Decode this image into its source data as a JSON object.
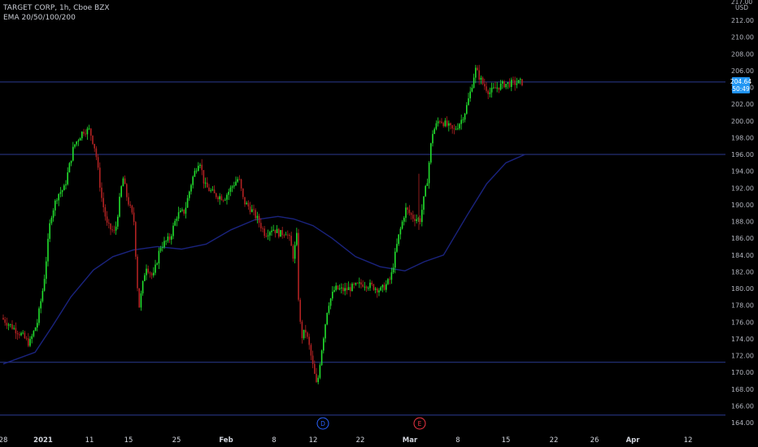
{
  "header": {
    "title": "TARGET CORP, 1h, Cboe BZX",
    "indicator": "EMA 20/50/100/200"
  },
  "axis": {
    "currency": "USD",
    "price_tag": "204.64",
    "countdown_tag": "50:49",
    "event_markers": [
      {
        "label": "D",
        "date_index": 5.05,
        "color": "#2962ff"
      },
      {
        "label": "E",
        "date_index": 10.65,
        "color": "#f23645"
      }
    ]
  },
  "colors": {
    "up": "#22e02e",
    "down": "#b22222",
    "ema": "#1a237e",
    "hline": "#2b3a8f",
    "price_tag_bg": "#2196f3",
    "background": "#000000"
  },
  "chart_data": {
    "type": "candlestick",
    "title": "TARGET CORP, 1h, Cboe BZX",
    "ylabel": "USD",
    "ylim": [
      163.3,
      217.5
    ],
    "y_ticks": [
      164,
      166,
      168,
      170,
      172,
      174,
      176,
      178,
      180,
      182,
      184,
      186,
      188,
      190,
      192,
      194,
      196,
      198,
      200,
      202,
      204,
      206,
      208,
      210,
      212
    ],
    "y_top_tick_label": "217.00",
    "x_ticks": [
      "28",
      "2021",
      "11",
      "15",
      "25",
      "Feb",
      "8",
      "12",
      "22",
      "Mar",
      "8",
      "15",
      "22",
      "26",
      "Apr",
      "12"
    ],
    "horizontal_lines": [
      204.64,
      196.0,
      171.2,
      164.9
    ],
    "ema_line": [
      [
        0,
        171.0
      ],
      [
        0.8,
        172.4
      ],
      [
        1.2,
        175.5
      ],
      [
        1.6,
        179.0
      ],
      [
        2.1,
        182.2
      ],
      [
        2.6,
        183.8
      ],
      [
        3.1,
        184.6
      ],
      [
        3.6,
        185.0
      ],
      [
        4.1,
        184.7
      ],
      [
        4.6,
        185.3
      ],
      [
        5.1,
        187.0
      ],
      [
        5.6,
        188.2
      ],
      [
        6.1,
        188.6
      ],
      [
        6.5,
        188.3
      ],
      [
        7.0,
        187.5
      ],
      [
        7.4,
        186.0
      ],
      [
        7.9,
        183.8
      ],
      [
        8.4,
        182.6
      ],
      [
        8.9,
        182.1
      ],
      [
        9.3,
        183.2
      ],
      [
        9.7,
        184.0
      ],
      [
        10.2,
        188.8
      ],
      [
        10.6,
        192.5
      ],
      [
        11.0,
        195.0
      ],
      [
        11.4,
        196.0
      ]
    ],
    "ohlc_path": [
      [
        0,
        176.5
      ],
      [
        0.5,
        174.5
      ],
      [
        0.7,
        173.4
      ],
      [
        0.9,
        176.0
      ],
      [
        1.05,
        180.5
      ],
      [
        1.2,
        188.5
      ],
      [
        1.35,
        191.2
      ],
      [
        1.5,
        192.0
      ],
      [
        1.7,
        197.0
      ],
      [
        1.9,
        198.8
      ],
      [
        2.05,
        198.9
      ],
      [
        2.2,
        196.5
      ],
      [
        2.35,
        191.0
      ],
      [
        2.5,
        187.5
      ],
      [
        2.7,
        186.6
      ],
      [
        2.9,
        193.3
      ],
      [
        3.0,
        191.0
      ],
      [
        3.15,
        188.0
      ],
      [
        3.25,
        177.5
      ],
      [
        3.4,
        182.8
      ],
      [
        3.55,
        181.3
      ],
      [
        3.7,
        185.0
      ],
      [
        3.9,
        186.0
      ],
      [
        4.05,
        188.8
      ],
      [
        4.2,
        189.2
      ],
      [
        4.35,
        193.0
      ],
      [
        4.5,
        195.5
      ],
      [
        4.6,
        192.3
      ],
      [
        4.8,
        191.2
      ],
      [
        5.0,
        190.8
      ],
      [
        5.2,
        192.5
      ],
      [
        5.3,
        193.2
      ],
      [
        5.4,
        190.4
      ],
      [
        5.55,
        189.5
      ],
      [
        5.7,
        188.2
      ],
      [
        5.85,
        186.5
      ],
      [
        6.0,
        187.2
      ],
      [
        6.2,
        186.5
      ],
      [
        6.35,
        186.8
      ],
      [
        6.45,
        185.8
      ],
      [
        6.55,
        183.5
      ],
      [
        6.62,
        187.0
      ],
      [
        6.68,
        177.5
      ],
      [
        6.75,
        174.2
      ],
      [
        6.85,
        175.0
      ],
      [
        6.95,
        173.0
      ],
      [
        7.05,
        170.2
      ],
      [
        7.12,
        168.2
      ],
      [
        7.2,
        172.0
      ],
      [
        7.35,
        178.0
      ],
      [
        7.5,
        180.0
      ],
      [
        7.7,
        179.8
      ],
      [
        7.9,
        180.2
      ],
      [
        8.1,
        180.6
      ],
      [
        8.3,
        180.2
      ],
      [
        8.45,
        179.8
      ],
      [
        8.55,
        180.4
      ],
      [
        8.65,
        181.2
      ],
      [
        8.8,
        186.0
      ],
      [
        8.95,
        189.5
      ],
      [
        9.1,
        188.5
      ],
      [
        9.25,
        188.2
      ],
      [
        9.4,
        193.0
      ],
      [
        9.5,
        198.5
      ],
      [
        9.65,
        200.2
      ],
      [
        9.8,
        199.5
      ],
      [
        9.95,
        198.8
      ],
      [
        10.1,
        200.0
      ],
      [
        10.2,
        201.3
      ],
      [
        10.3,
        203.5
      ],
      [
        10.4,
        206.2
      ],
      [
        10.55,
        204.5
      ],
      [
        10.7,
        203.4
      ],
      [
        10.85,
        204.0
      ],
      [
        11.0,
        204.4
      ],
      [
        11.2,
        204.5
      ],
      [
        11.35,
        204.6
      ]
    ]
  }
}
